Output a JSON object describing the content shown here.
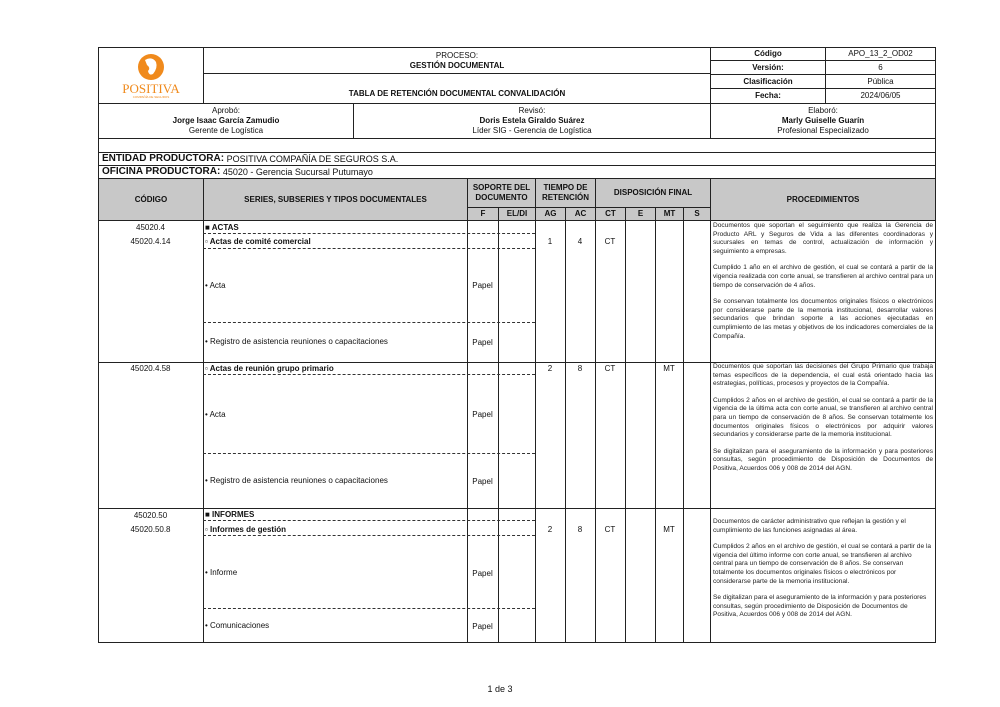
{
  "header": {
    "logo_text": "POSITIVA",
    "logo_tagline": "COMPAÑÍA DE SEGUROS",
    "process_label": "PROCESO:",
    "process_name": "GESTIÓN DOCUMENTAL",
    "doc_title": "TABLA DE RETENCIÓN DOCUMENTAL CONVALIDACIÓN",
    "meta": [
      {
        "label": "Código",
        "value": "APO_13_2_OD02"
      },
      {
        "label": "Versión:",
        "value": "6"
      },
      {
        "label": "Clasificación",
        "value": "Pública"
      },
      {
        "label": "Fecha:",
        "value": "2024/06/05"
      }
    ]
  },
  "signatures": [
    {
      "role": "Aprobó:",
      "name": "Jorge Isaac García Zamudio",
      "title": "Gerente de Logística"
    },
    {
      "role": "Revisó:",
      "name": "Doris Estela Giraldo Suárez",
      "title": "Líder SIG - Gerencia de Logística"
    },
    {
      "role": "Elaboró:",
      "name": "Marly Guiselle Guarín",
      "title": "Profesional Especializado"
    }
  ],
  "entidad": {
    "label": "ENTIDAD PRODUCTORA:",
    "value": "POSITIVA COMPAÑÍA DE SEGUROS S.A."
  },
  "oficina": {
    "label": "OFICINA PRODUCTORA:",
    "value": "45020 - Gerencia Sucursal Putumayo"
  },
  "columns": {
    "codigo": "CÓDIGO",
    "series": "SERIES, SUBSERIES Y TIPOS DOCUMENTALES",
    "soporte": "SOPORTE DEL DOCUMENTO",
    "f": "F",
    "eldi": "EL/DI",
    "tiempo": "TIEMPO DE RETENCIÓN",
    "ag": "AG",
    "ac": "AC",
    "disposicion": "DISPOSICIÓN FINAL",
    "ct": "CT",
    "e": "E",
    "mt": "MT",
    "s": "S",
    "procedimientos": "PROCEDIMIENTOS"
  },
  "groups": [
    {
      "series_code": "45020.4",
      "series_name": "■ ACTAS",
      "sub_code": "45020.4.14",
      "sub_name": "▫ Actas de comité comercial",
      "ag": "1",
      "ac": "4",
      "ct": "CT",
      "mt": "",
      "types": [
        {
          "name": "• Acta",
          "support": "Papel"
        },
        {
          "name": "• Registro de asistencia reuniones o capacitaciones",
          "support": "Papel"
        }
      ],
      "proc": [
        "Documentos que soportan el seguimiento que realiza la Gerencia de Producto ARL y Seguros de Vida a las diferentes coordinadoras y sucursales en temas de control, actualización de información y seguimiento a empresas.",
        "Cumplido 1 año en el archivo de gestión, el cual se contará a partir de la vigencia realizada con corte anual, se transfieren al archivo central  para un tiempo de conservación de 4 años.",
        "Se conservan totalmente los documentos originales físicos o electrónicos por considerarse parte de la memoria institucional, desarrollar valores secundarios que brindan soporte a las acciones ejecutadas en cumplimiento de las metas y objetivos de los indicadores comerciales de la Compañía."
      ]
    },
    {
      "series_code": "",
      "series_name": "",
      "sub_code": "45020.4.58",
      "sub_name": "▫ Actas de reunión grupo primario",
      "ag": "2",
      "ac": "8",
      "ct": "CT",
      "mt": "MT",
      "types": [
        {
          "name": "• Acta",
          "support": "Papel"
        },
        {
          "name": "• Registro de asistencia reuniones o capacitaciones",
          "support": "Papel"
        }
      ],
      "proc": [
        "Documentos que soportan las decisiones del Grupo Primario que trabaja temas específicos de la dependencia, el cual está orientado hacia las estrategias, políticas, procesos y proyectos de la Compañía.",
        "Cumplidos 2 años en el archivo de gestión, el cual se contará a partir de la vigencia de la última acta con corte anual, se transfieren al archivo central para un tiempo de conservación de 8 años. Se conservan totalmente los documentos originales físicos o electrónicos por adquirir valores secundarios y considerarse parte de la memoria institucional.",
        "Se digitalizan para el aseguramiento de la información y para posteriores consultas, según procedimiento de Disposición de Documentos de Positiva, Acuerdos 006 y 008 de 2014 del AGN."
      ]
    },
    {
      "series_code": "45020.50",
      "series_name": "■ INFORMES",
      "sub_code": "45020.50.8",
      "sub_name": "▫ Informes de gestión",
      "ag": "2",
      "ac": "8",
      "ct": "CT",
      "mt": "MT",
      "types": [
        {
          "name": "• Informe",
          "support": "Papel"
        },
        {
          "name": "• Comunicaciones",
          "support": "Papel"
        }
      ],
      "proc": [
        "Documentos de carácter administrativo que reflejan la gestión y el cumplimiento de las funciones asignadas al área.",
        "Cumplidos 2 años en el archivo de gestión, el cual se contará a partir de la vigencia del último informe con corte anual, se transfieren al archivo central  para un tiempo de conservación de 8 años. Se conservan totalmente los documentos originales físicos o electrónicos por considerarse parte de la memoria institucional.",
        "Se digitalizan para el aseguramiento de la información y para posteriores consultas, según procedimiento de Disposición de Documentos de Positiva, Acuerdos 006 y 008 de 2014 del AGN."
      ]
    }
  ],
  "footer": {
    "page": "1 de 3"
  },
  "colors": {
    "brand_orange": "#f08a1c",
    "header_gray": "#c8c8c8"
  }
}
